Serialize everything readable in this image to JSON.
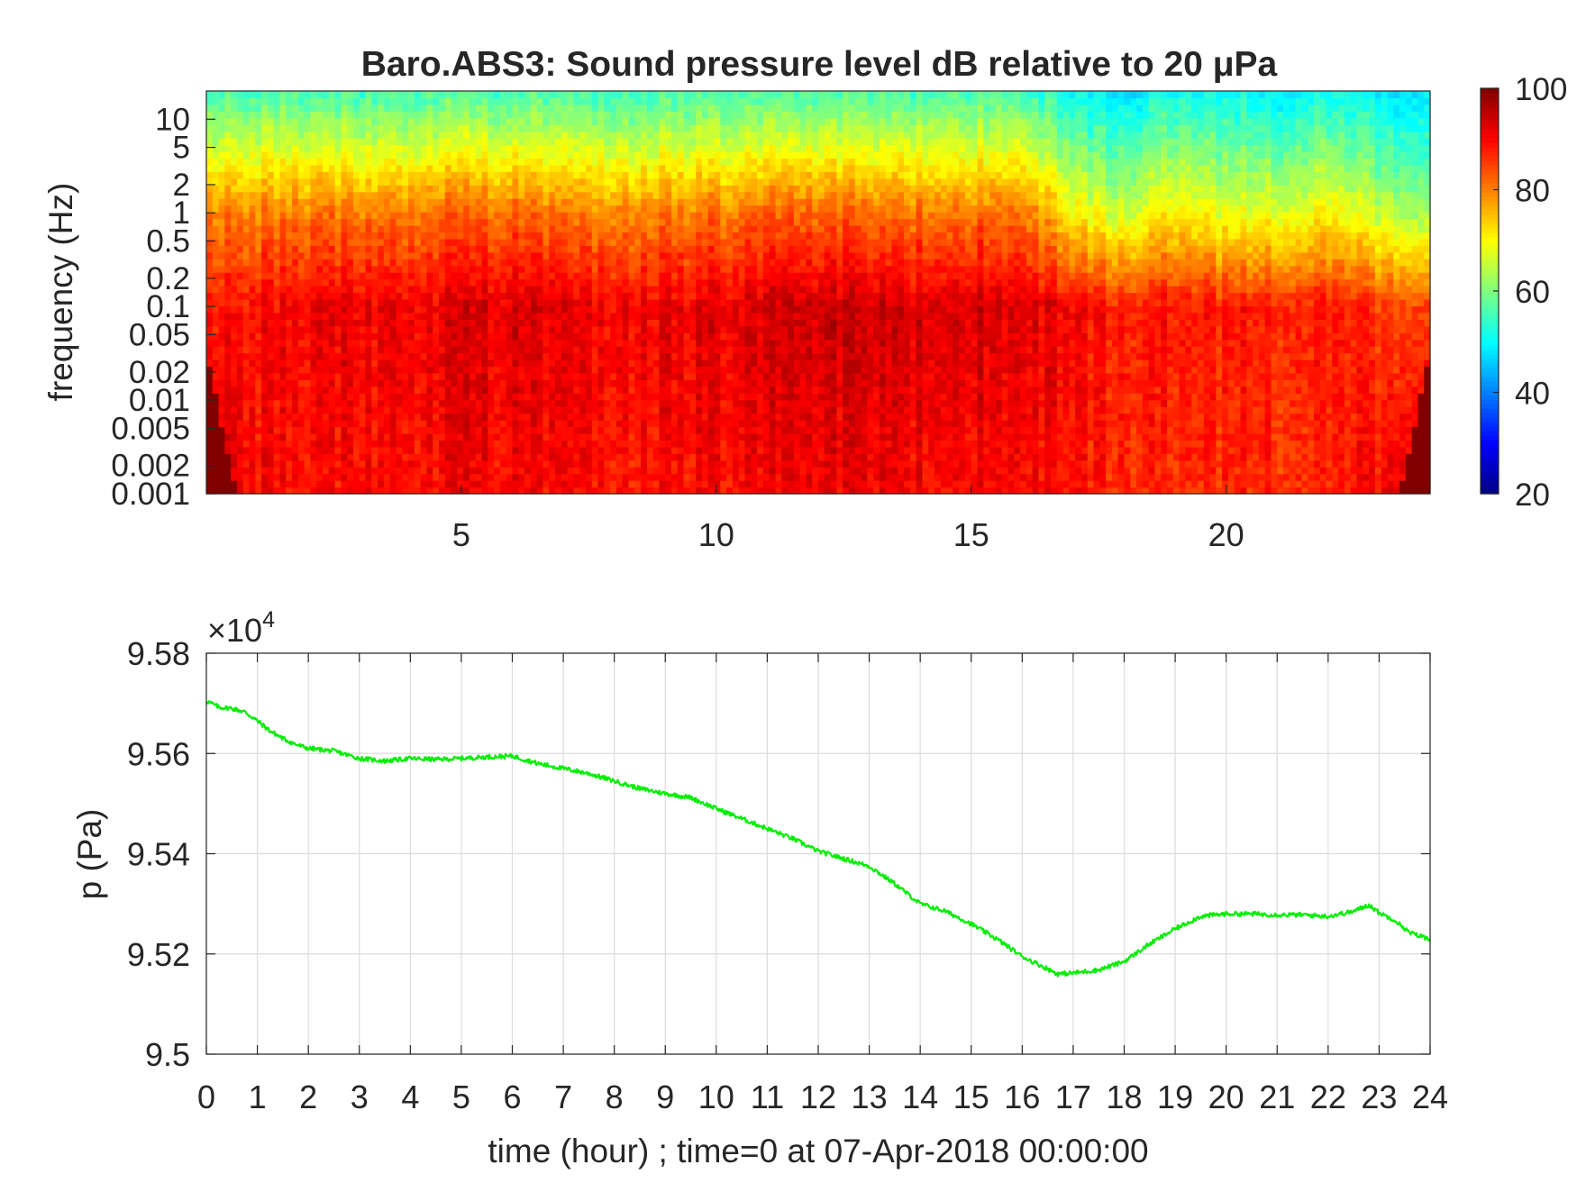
{
  "chart_data": [
    {
      "type": "heatmap",
      "title": "Baro.ABS3: Sound pressure level dB relative to 20 μPa",
      "ylabel": "frequency (Hz)",
      "xlabel": "",
      "yscale": "log",
      "ylim": [
        0.001,
        20
      ],
      "xlim": [
        0,
        24
      ],
      "x_ticks": [
        "5",
        "10",
        "15",
        "20"
      ],
      "y_ticks": [
        "0.001",
        "0.002",
        "0.005",
        "0.01",
        "0.02",
        "0.05",
        "0.1",
        "0.2",
        "0.5",
        "1",
        "2",
        "5",
        "10"
      ],
      "colorbar": {
        "colormap": "jet",
        "range": [
          20,
          100
        ],
        "ticks": [
          "20",
          "40",
          "60",
          "80",
          "100"
        ]
      },
      "time_hours": [
        0,
        1,
        2,
        3,
        4,
        5,
        6,
        7,
        8,
        9,
        10,
        11,
        12,
        13,
        14,
        15,
        16,
        17,
        18,
        19,
        20,
        21,
        22,
        23,
        24
      ],
      "profile_description": {
        "dB_at_0.001Hz": [
          96,
          90,
          89,
          89,
          90,
          90,
          90,
          90,
          89,
          89,
          90,
          90,
          91,
          91,
          90,
          90,
          90,
          88,
          87,
          87,
          87,
          87,
          87,
          90,
          96
        ],
        "dB_at_0.1Hz": [
          88,
          90,
          91,
          91,
          91,
          92,
          93,
          92,
          91,
          91,
          92,
          93,
          94,
          94,
          93,
          93,
          93,
          90,
          88,
          89,
          88,
          88,
          88,
          86,
          85
        ],
        "dB_at_1Hz": [
          80,
          80,
          81,
          80,
          81,
          82,
          82,
          81,
          80,
          80,
          81,
          82,
          82,
          82,
          81,
          81,
          82,
          70,
          66,
          72,
          68,
          68,
          70,
          66,
          62
        ],
        "dB_at_20Hz": [
          55,
          56,
          56,
          55,
          56,
          56,
          56,
          56,
          55,
          55,
          56,
          56,
          56,
          56,
          56,
          56,
          56,
          50,
          48,
          52,
          50,
          50,
          51,
          49,
          48
        ]
      }
    },
    {
      "type": "line",
      "title": "",
      "xlabel": "time (hour) ; time=0 at 07-Apr-2018 00:00:00",
      "ylabel": "p (Pa)",
      "y_multiplier": "×10",
      "y_multiplier_exp": "4",
      "xlim": [
        0,
        24
      ],
      "ylim": [
        9.5,
        9.58
      ],
      "grid": true,
      "x_ticks": [
        "0",
        "1",
        "2",
        "3",
        "4",
        "5",
        "6",
        "7",
        "8",
        "9",
        "10",
        "11",
        "12",
        "13",
        "14",
        "15",
        "16",
        "17",
        "18",
        "19",
        "20",
        "21",
        "22",
        "23",
        "24"
      ],
      "y_ticks": [
        "9.5",
        "9.52",
        "9.54",
        "9.56",
        "9.58"
      ],
      "line_color": "#00ee00",
      "series": [
        {
          "x": [
            0,
            0.25,
            0.5,
            0.75,
            1.0,
            1.25,
            1.5,
            1.75,
            2.0,
            2.5,
            3.0,
            3.5,
            4.0,
            4.5,
            5.0,
            5.5,
            6.0,
            6.5,
            7.0,
            7.5,
            8.0,
            8.5,
            9.0,
            9.5,
            10.0,
            10.5,
            11.0,
            11.5,
            12.0,
            12.5,
            13.0,
            13.5,
            14.0,
            14.5,
            15.0,
            15.5,
            16.0,
            16.5,
            16.7,
            17.0,
            17.5,
            18.0,
            18.5,
            19.0,
            19.5,
            20.0,
            20.5,
            21.0,
            21.5,
            22.0,
            22.5,
            22.8,
            23.0,
            23.3,
            23.6,
            24.0
          ],
          "y": [
            9.5705,
            9.5692,
            9.569,
            9.5683,
            9.5665,
            9.5645,
            9.563,
            9.5618,
            9.561,
            9.5605,
            9.559,
            9.5585,
            9.559,
            9.5588,
            9.559,
            9.5593,
            9.5595,
            9.558,
            9.557,
            9.556,
            9.5545,
            9.553,
            9.552,
            9.5512,
            9.549,
            9.547,
            9.545,
            9.543,
            9.5405,
            9.539,
            9.5375,
            9.534,
            9.53,
            9.5285,
            9.526,
            9.523,
            9.5195,
            9.517,
            9.516,
            9.5162,
            9.5168,
            9.5185,
            9.522,
            9.525,
            9.5275,
            9.528,
            9.528,
            9.5278,
            9.5278,
            9.5275,
            9.5285,
            9.5298,
            9.5282,
            9.5268,
            9.5242,
            9.523
          ]
        }
      ]
    }
  ]
}
